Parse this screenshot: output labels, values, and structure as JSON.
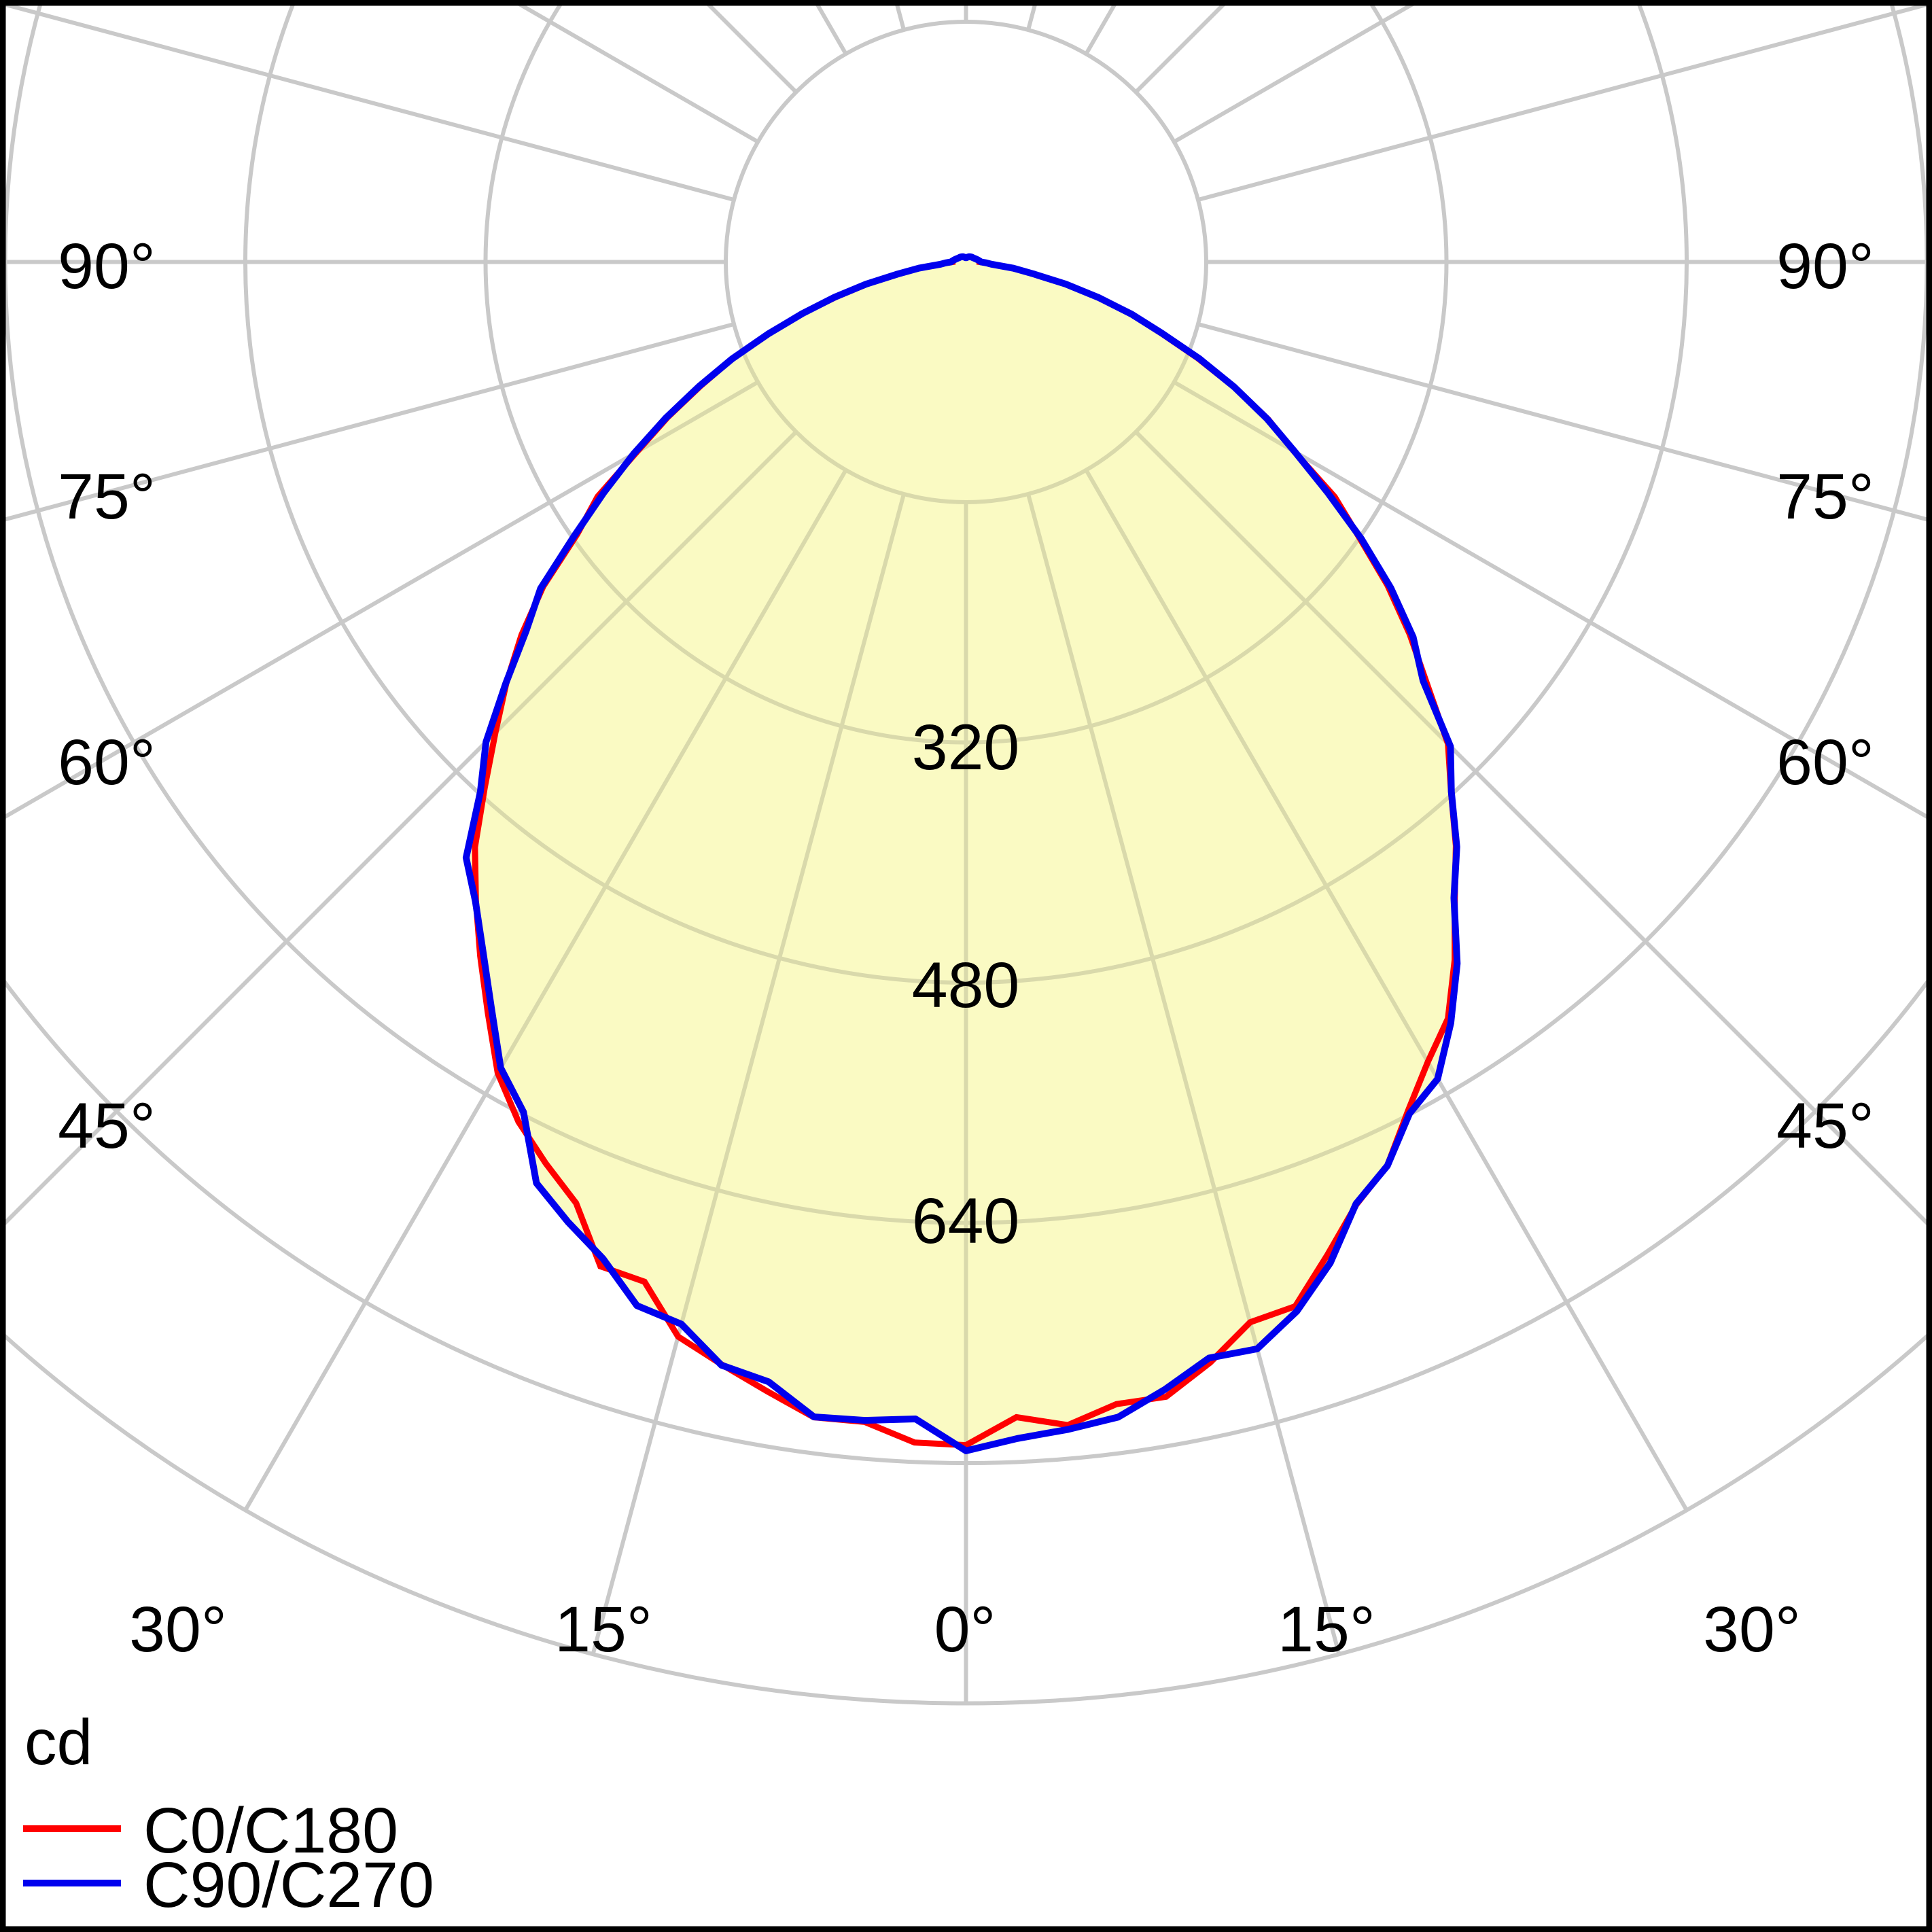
{
  "legend": {
    "unit_label": "cd",
    "series": [
      {
        "label": "C0/C180",
        "color": "#ff0000"
      },
      {
        "label": "C90/C270",
        "color": "#0000ee"
      }
    ]
  },
  "angle_labels": {
    "left": [
      "90°",
      "75°",
      "60°",
      "45°"
    ],
    "right": [
      "90°",
      "75°",
      "60°",
      "45°"
    ],
    "bottom": [
      "30°",
      "15°",
      "0°",
      "15°",
      "30°"
    ]
  },
  "ring_labels": [
    "320",
    "480",
    "640"
  ],
  "chart_data": {
    "type": "polar-photometric-curve",
    "unit": "cd",
    "ring_step_cd": 160,
    "rings_cd": [
      160,
      320,
      480,
      640,
      800,
      960
    ],
    "labeled_rings_cd": [
      320,
      480,
      640
    ],
    "ray_step_deg": 15,
    "angle_tick_labels_deg": [
      0,
      15,
      30,
      45,
      60,
      75,
      90
    ],
    "peak_intensity_cd": 782,
    "grid_color": "#c9c9c9",
    "grid_color_inside_fill": "#d9d9ab",
    "fill_color": "#fafac3",
    "frame_color": "#000000",
    "background_color": "#ffffff",
    "series": [
      {
        "name": "C0/C180",
        "color": "#ff0000",
        "angles_deg": [
          -90,
          -85,
          -80,
          -75,
          -70,
          -65,
          -60,
          -55,
          -50,
          -45,
          -40,
          -35,
          -30,
          -25,
          -20,
          -15,
          -10,
          -5,
          0,
          5,
          10,
          15,
          20,
          25,
          30,
          35,
          40,
          45,
          50,
          55,
          60,
          65,
          70,
          75,
          80,
          85,
          90
        ],
        "intensity_cd": [
          9,
          16,
          45,
          90,
          138,
          197,
          255,
          320,
          383,
          449,
          511,
          565,
          620,
          667,
          704,
          739,
          760,
          775,
          780,
          775,
          760,
          739,
          704,
          667,
          620,
          565,
          511,
          449,
          383,
          320,
          255,
          197,
          138,
          90,
          45,
          16,
          9
        ]
      },
      {
        "name": "C90/C270",
        "color": "#0000ee",
        "angles_deg": [
          -90,
          -85,
          -80,
          -75,
          -70,
          -65,
          -60,
          -55,
          -50,
          -45,
          -40,
          -35,
          -30,
          -25,
          -20,
          -15,
          -10,
          -5,
          0,
          5,
          10,
          15,
          20,
          25,
          30,
          35,
          40,
          45,
          50,
          55,
          60,
          65,
          70,
          75,
          80,
          85,
          90
        ],
        "intensity_cd": [
          10,
          17,
          46,
          91,
          139,
          198,
          256,
          322,
          385,
          451,
          513,
          567,
          623,
          669,
          706,
          741,
          762,
          778,
          782,
          778,
          762,
          741,
          706,
          669,
          623,
          567,
          513,
          451,
          385,
          322,
          256,
          198,
          139,
          91,
          46,
          17,
          10
        ]
      }
    ],
    "tail_beyond_90_cd": [
      [
        95,
        9
      ],
      [
        100,
        8
      ],
      [
        110,
        6.5
      ],
      [
        120,
        5.5
      ],
      [
        130,
        5
      ],
      [
        140,
        4.5
      ],
      [
        150,
        4
      ],
      [
        160,
        3.5
      ],
      [
        170,
        3
      ],
      [
        180,
        2.8
      ]
    ]
  }
}
